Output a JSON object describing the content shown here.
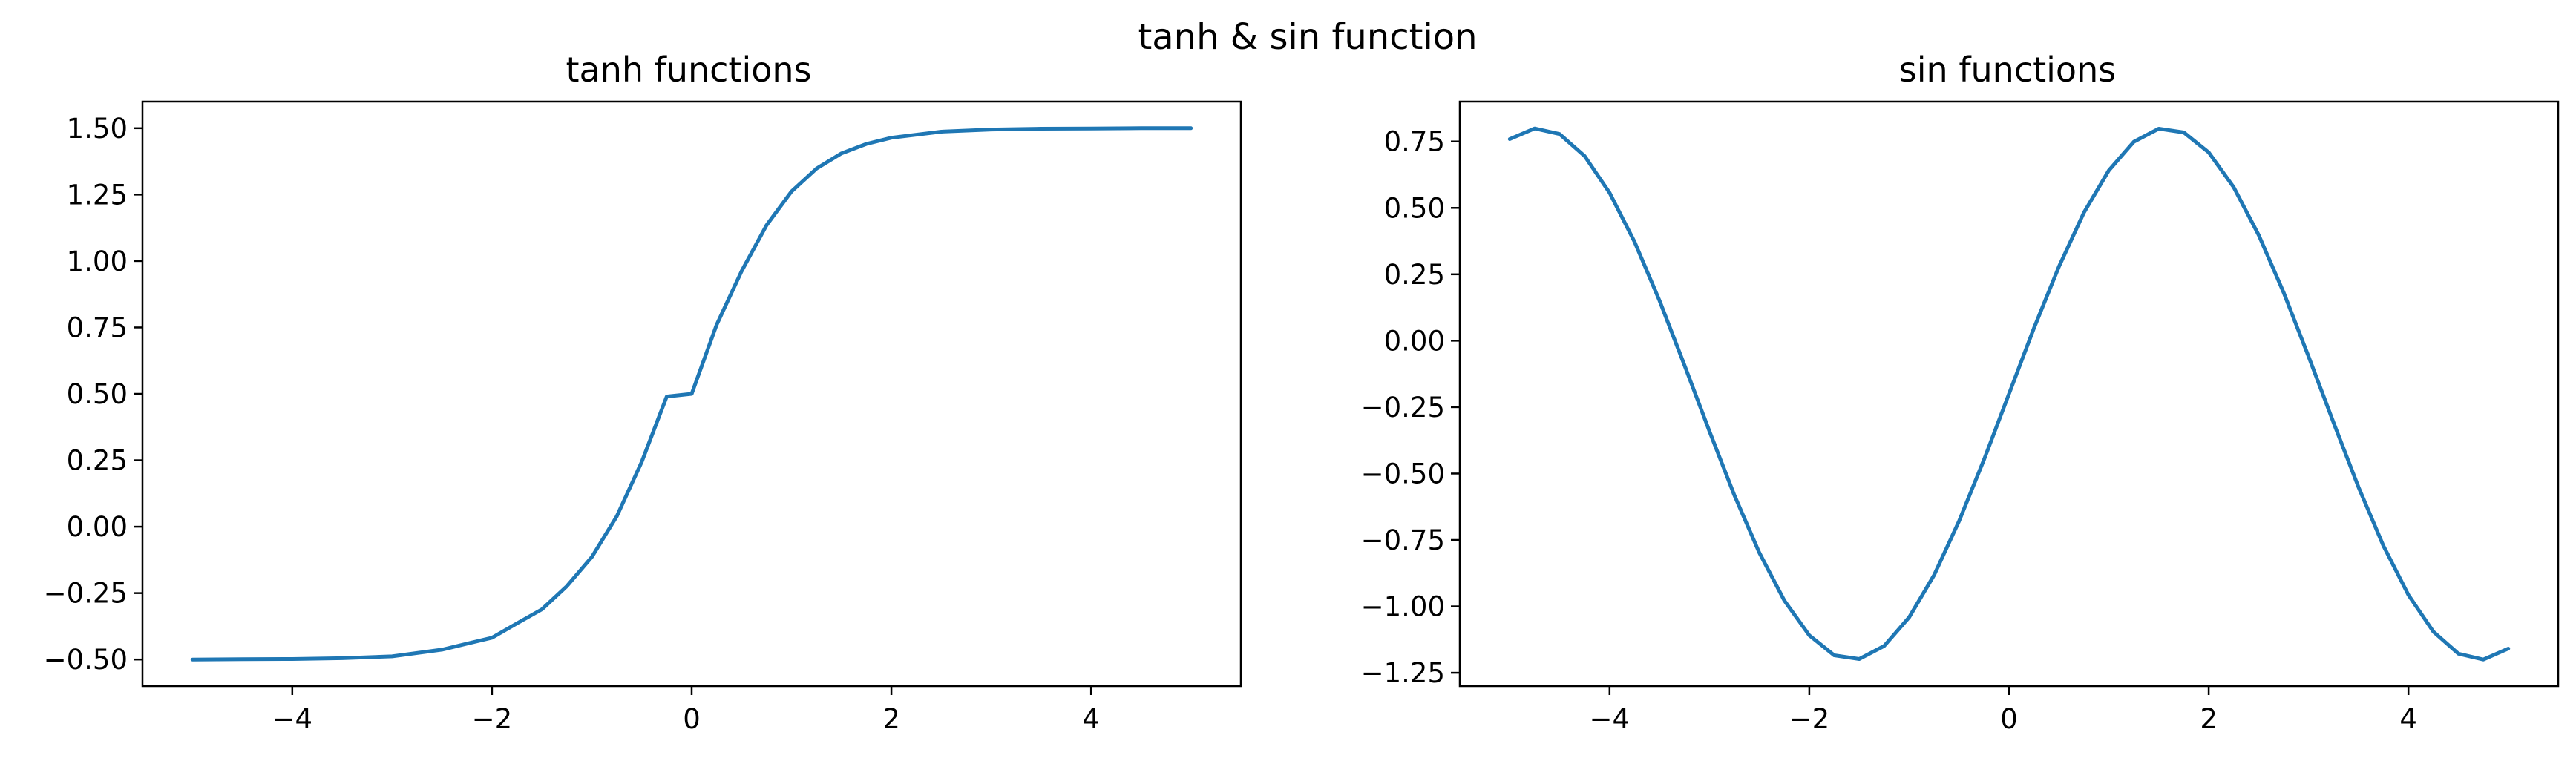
{
  "figure": {
    "suptitle": "tanh & sin function",
    "line_color": "#1f77b4"
  },
  "chart_data": [
    {
      "type": "line",
      "title": "tanh functions",
      "xlabel": "",
      "ylabel": "",
      "xlim": [
        -5.5,
        5.5
      ],
      "ylim": [
        -0.6,
        1.6
      ],
      "xticks": [
        -4,
        -2,
        0,
        2,
        4
      ],
      "xtick_labels": [
        "−4",
        "−2",
        "0",
        "2",
        "4"
      ],
      "yticks": [
        -0.5,
        -0.25,
        0,
        0.25,
        0.5,
        0.75,
        1.0,
        1.25,
        1.5
      ],
      "ytick_labels": [
        "−0.50",
        "−0.25",
        "0.00",
        "0.25",
        "0.50",
        "0.75",
        "1.00",
        "1.25",
        "1.50"
      ],
      "grid": false,
      "legend": "none",
      "series": [
        {
          "x": [
            -5,
            -4.5,
            -4,
            -3.5,
            -3,
            -2.5,
            -2,
            -1.75,
            -1.5,
            -1.25,
            -1,
            -0.75,
            -0.5,
            -0.25,
            0,
            0.25,
            0.5,
            0.75,
            1,
            1.25,
            1.5,
            1.75,
            2,
            2.5,
            3,
            3.5,
            4,
            4.5,
            5
          ],
          "y": [
            -0.5,
            -0.499,
            -0.498,
            -0.495,
            -0.488,
            -0.463,
            -0.418,
            -0.364,
            -0.311,
            -0.224,
            -0.114,
            0.039,
            0.244,
            0.49,
            0.5,
            0.76,
            0.962,
            1.135,
            1.262,
            1.348,
            1.405,
            1.441,
            1.464,
            1.487,
            1.495,
            1.498,
            1.499,
            1.5,
            1.5
          ]
        }
      ]
    },
    {
      "type": "line",
      "title": "sin functions",
      "xlabel": "",
      "ylabel": "",
      "xlim": [
        -5.5,
        5.5
      ],
      "ylim": [
        -1.3,
        0.9
      ],
      "xticks": [
        -4,
        -2,
        0,
        2,
        4
      ],
      "xtick_labels": [
        "−4",
        "−2",
        "0",
        "2",
        "4"
      ],
      "yticks": [
        -1.25,
        -1.0,
        -0.75,
        -0.5,
        -0.25,
        0,
        0.25,
        0.5,
        0.75
      ],
      "ytick_labels": [
        "−1.25",
        "−1.00",
        "−0.75",
        "−0.50",
        "−0.25",
        "0.00",
        "0.25",
        "0.50",
        "0.75"
      ],
      "grid": false,
      "legend": "none",
      "series": [
        {
          "x": [
            -5,
            -4.75,
            -4.5,
            -4.25,
            -4,
            -3.75,
            -3.5,
            -3.25,
            -3,
            -2.75,
            -2.5,
            -2.25,
            -2,
            -1.75,
            -1.5,
            -1.25,
            -1,
            -0.75,
            -0.5,
            -0.25,
            0,
            0.25,
            0.5,
            0.75,
            1,
            1.25,
            1.5,
            1.75,
            2,
            2.25,
            2.5,
            2.75,
            3,
            3.25,
            3.5,
            3.75,
            4,
            4.25,
            4.5,
            4.75,
            5
          ],
          "y": [
            0.759,
            0.799,
            0.778,
            0.695,
            0.557,
            0.372,
            0.151,
            -0.092,
            -0.341,
            -0.582,
            -0.798,
            -0.978,
            -1.109,
            -1.184,
            -1.198,
            -1.149,
            -1.041,
            -0.882,
            -0.679,
            -0.447,
            -0.2,
            0.047,
            0.279,
            0.482,
            0.641,
            0.749,
            0.798,
            0.784,
            0.709,
            0.578,
            0.398,
            0.182,
            -0.059,
            -0.308,
            -0.551,
            -0.772,
            -0.957,
            -1.095,
            -1.178,
            -1.2,
            -1.159
          ]
        }
      ]
    }
  ]
}
